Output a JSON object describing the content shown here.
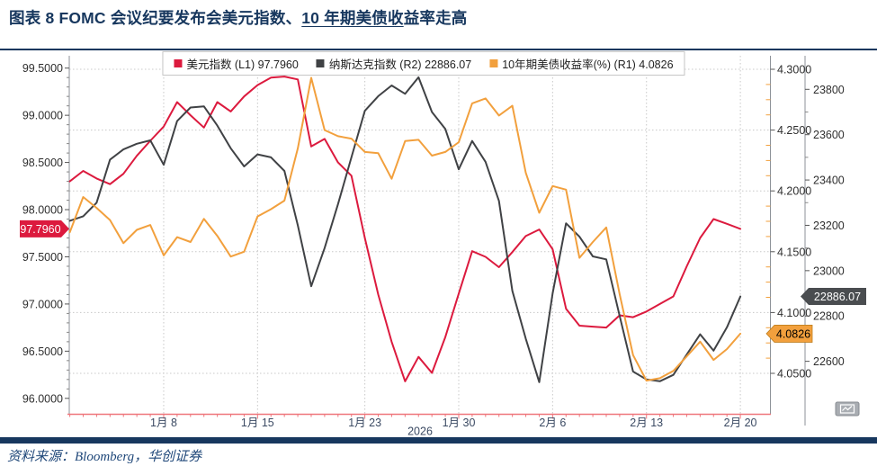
{
  "title": {
    "pre": "图表 8  FOMC 会议纪要发布会美元指数、",
    "underlined": "10 年期美债收",
    "post": "益率走高"
  },
  "legend": [
    {
      "label": "美元指数 (L1) 97.7960",
      "color": "#dc1a3e"
    },
    {
      "label": "纳斯达克指数 (R2) 22886.07",
      "color": "#404245"
    },
    {
      "label": "10年期美债收益率(%) (R1) 4.0826",
      "color": "#f2a03d"
    }
  ],
  "source": "资料来源：Bloomberg，华创证券",
  "chart_data": {
    "type": "line",
    "title": "FOMC 会议纪要发布会美元指数、10 年期美债收益率走高",
    "x_unit": "days since 2026-01-01 (daily, Jan 1 - Feb 20 2026)",
    "x_year_label": "2026",
    "x_ticks": [
      {
        "d": 7,
        "label": "1月 8"
      },
      {
        "d": 14,
        "label": "1月 15"
      },
      {
        "d": 22,
        "label": "1月 23"
      },
      {
        "d": 29,
        "label": "1月 30"
      },
      {
        "d": 36,
        "label": "2月 6"
      },
      {
        "d": 43,
        "label": "2月 13"
      },
      {
        "d": 50,
        "label": "2月 20"
      }
    ],
    "axes": {
      "L1": {
        "side": "left",
        "min": 96.0,
        "max": 99.5,
        "tick_values": [
          99.5,
          99.0,
          98.5,
          98.0,
          97.5,
          97.0,
          96.5,
          96.0
        ],
        "tick_labels": [
          "99.5000",
          "99.0000",
          "98.5000",
          "98.0000",
          "97.5000",
          "97.0000",
          "96.5000",
          "96.0000"
        ]
      },
      "R1": {
        "side": "right-inner",
        "min": 4.05,
        "max": 4.3,
        "tick_values": [
          4.3,
          4.25,
          4.2,
          4.15,
          4.1,
          4.05
        ],
        "tick_labels": [
          "4.3000",
          "4.2500",
          "4.2000",
          "4.1500",
          "4.1000",
          "4.0500"
        ]
      },
      "R2": {
        "side": "right-outer",
        "min": 22600,
        "max": 23800,
        "tick_values": [
          23800,
          23600,
          23400,
          23200,
          23000,
          22800,
          22600
        ],
        "tick_labels": [
          "23800",
          "23600",
          "23400",
          "23200",
          "23000",
          "22800",
          "22600"
        ]
      }
    },
    "grid": {
      "horizontal": "R1 major ticks, dotted",
      "vertical": "x date ticks, dotted"
    },
    "series": [
      {
        "name": "美元指数",
        "axis": "L1",
        "color": "#dc1a3e",
        "last_label": "97.7960",
        "values": [
          98.3,
          98.41,
          98.33,
          98.27,
          98.38,
          98.57,
          98.73,
          98.88,
          99.14,
          99.0,
          98.87,
          99.14,
          99.04,
          99.2,
          99.32,
          99.4,
          99.41,
          99.38,
          98.67,
          98.75,
          98.5,
          98.36,
          97.7,
          97.1,
          96.6,
          96.18,
          96.44,
          96.27,
          96.65,
          97.11,
          97.56,
          97.5,
          97.39,
          97.55,
          97.72,
          97.79,
          97.58,
          96.95,
          96.77,
          96.76,
          96.75,
          96.88,
          96.86,
          96.92,
          97.0,
          97.08,
          97.4,
          97.7,
          97.9,
          97.85,
          97.796
        ]
      },
      {
        "name": "纳斯达克指数",
        "axis": "R2",
        "color": "#404245",
        "last_label": "22886.07",
        "values": [
          23220,
          23240,
          23300,
          23490,
          23535,
          23560,
          23575,
          23467,
          23660,
          23720,
          23725,
          23640,
          23540,
          23460,
          23513,
          23500,
          23440,
          23200,
          22931,
          23100,
          23294,
          23500,
          23705,
          23770,
          23817,
          23780,
          23853,
          23700,
          23625,
          23447,
          23572,
          23480,
          23308,
          22911,
          22700,
          22508,
          22900,
          23209,
          23150,
          23063,
          23050,
          22800,
          22555,
          22520,
          22512,
          22540,
          22630,
          22719,
          22647,
          22750,
          22886.07
        ]
      },
      {
        "name": "10年期美债收益率(%)",
        "axis": "R1",
        "color": "#f2a03d",
        "last_label": "4.0826",
        "values": [
          4.166,
          4.195,
          4.186,
          4.176,
          4.157,
          4.168,
          4.172,
          4.147,
          4.162,
          4.158,
          4.177,
          4.163,
          4.146,
          4.15,
          4.179,
          4.185,
          4.192,
          4.235,
          4.293,
          4.25,
          4.245,
          4.243,
          4.232,
          4.231,
          4.21,
          4.241,
          4.242,
          4.229,
          4.232,
          4.24,
          4.272,
          4.276,
          4.262,
          4.27,
          4.215,
          4.182,
          4.204,
          4.201,
          4.145,
          4.158,
          4.17,
          4.115,
          4.065,
          4.044,
          4.046,
          4.052,
          4.064,
          4.076,
          4.061,
          4.07,
          4.0826
        ]
      }
    ],
    "badges": [
      {
        "series": "美元指数",
        "text": "97.7960",
        "bg": "#dc1a3e",
        "fg": "#ffffff",
        "position": "left-axis"
      },
      {
        "series": "纳斯达克指数",
        "text": "22886.07",
        "bg": "#4a4d50",
        "fg": "#ffffff",
        "position": "right-outer-axis"
      },
      {
        "series": "10年期美债收益率(%)",
        "text": "4.0826",
        "bg": "#f2a03d",
        "fg": "#000000",
        "position": "right-inner-axis"
      }
    ],
    "colors": {
      "baseline": "#ef767c",
      "gridline": "#c8c8c8",
      "axis_line": "#8d9299",
      "tick_text": "#2f2f2f",
      "date_text": "#3b4a63",
      "title_navy": "#17375e"
    },
    "icons": [
      {
        "name": "chart-button-icon",
        "position": "bottom-right"
      }
    ]
  }
}
